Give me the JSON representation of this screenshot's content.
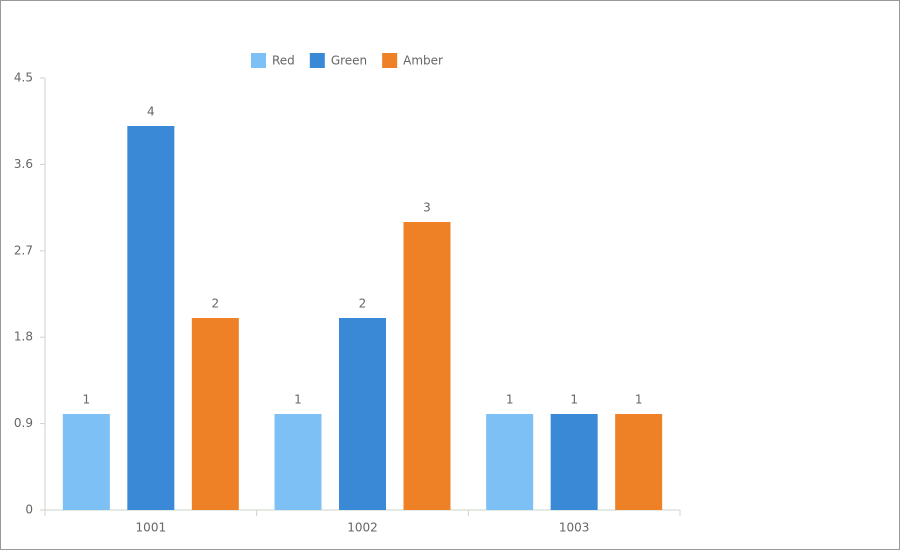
{
  "chart_data": {
    "type": "bar",
    "categories": [
      "1001",
      "1002",
      "1003"
    ],
    "series": [
      {
        "name": "Red",
        "color": "#7dc0f5",
        "values": [
          1,
          1,
          1
        ]
      },
      {
        "name": "Green",
        "color": "#3a89d6",
        "values": [
          4,
          2,
          1
        ]
      },
      {
        "name": "Amber",
        "color": "#ee8026",
        "values": [
          2,
          3,
          1
        ]
      }
    ],
    "ylim": [
      0,
      4.5
    ],
    "yticks": [
      0,
      0.9,
      1.8,
      2.7,
      3.6,
      4.5
    ],
    "grid": false,
    "legend": "top"
  }
}
